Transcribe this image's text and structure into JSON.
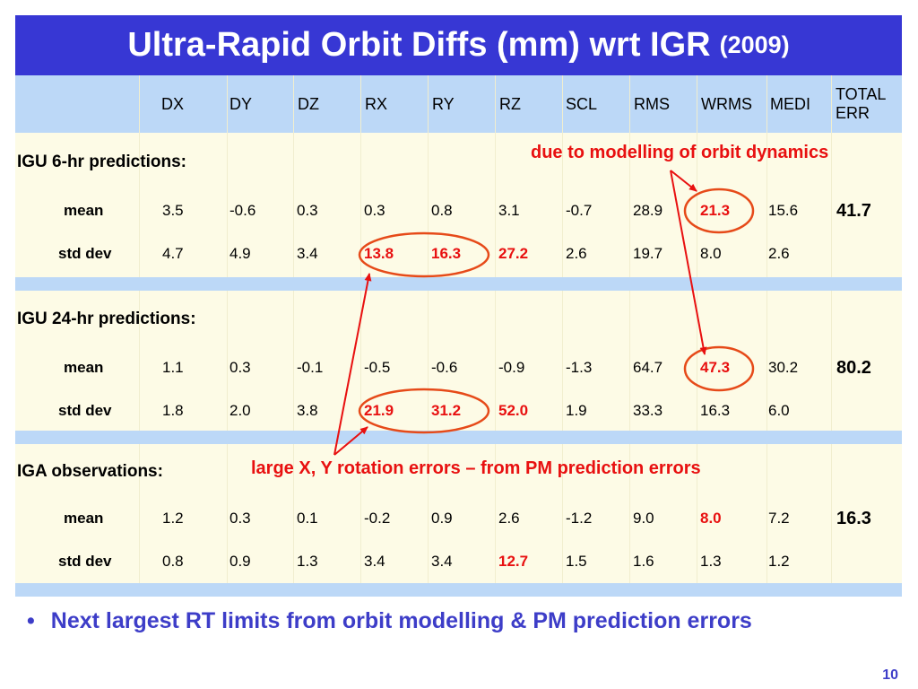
{
  "title": {
    "main": "Ultra-Rapid Orbit Diffs (mm) wrt IGR",
    "year": "(2009)"
  },
  "columns": [
    "DX",
    "DY",
    "DZ",
    "RX",
    "RY",
    "RZ",
    "SCL",
    "RMS",
    "WRMS",
    "MEDI"
  ],
  "total_header": [
    "TOTAL",
    "ERR"
  ],
  "sections": [
    {
      "label": "IGU 6-hr predictions:",
      "rows": [
        {
          "label": "mean",
          "values": [
            "3.5",
            "-0.6",
            "0.3",
            "0.3",
            "0.8",
            "3.1",
            "-0.7",
            "28.9",
            "21.3",
            "15.6"
          ],
          "total": "41.7"
        },
        {
          "label": "std dev",
          "values": [
            "4.7",
            "4.9",
            "3.4",
            "13.8",
            "16.3",
            "27.2",
            "2.6",
            "19.7",
            "8.0",
            "2.6"
          ],
          "total": ""
        }
      ]
    },
    {
      "label": "IGU 24-hr predictions:",
      "rows": [
        {
          "label": "mean",
          "values": [
            "1.1",
            "0.3",
            "-0.1",
            "-0.5",
            "-0.6",
            "-0.9",
            "-1.3",
            "64.7",
            "47.3",
            "30.2"
          ],
          "total": "80.2"
        },
        {
          "label": "std dev",
          "values": [
            "1.8",
            "2.0",
            "3.8",
            "21.9",
            "31.2",
            "52.0",
            "1.9",
            "33.3",
            "16.3",
            "6.0"
          ],
          "total": ""
        }
      ]
    },
    {
      "label": "IGA observations:",
      "rows": [
        {
          "label": "mean",
          "values": [
            "1.2",
            "0.3",
            "0.1",
            "-0.2",
            "0.9",
            "2.6",
            "-1.2",
            "9.0",
            "8.0",
            "7.2"
          ],
          "total": "16.3"
        },
        {
          "label": "std dev",
          "values": [
            "0.8",
            "0.9",
            "1.3",
            "3.4",
            "3.4",
            "12.7",
            "1.5",
            "1.6",
            "1.3",
            "1.2"
          ],
          "total": ""
        }
      ]
    }
  ],
  "annotations": {
    "dynamics": "due to modelling of orbit dynamics",
    "rotation": "large X, Y rotation errors – from PM prediction errors"
  },
  "bullet": "Next largest RT limits from orbit modelling & PM prediction errors",
  "page_number": "10",
  "colors": {
    "title_bg": "#3737d4",
    "header_bg": "#bcd8f7",
    "body_bg": "#fdfbe6",
    "highlight": "#e81010",
    "bullet_text": "#3d3dc8"
  }
}
